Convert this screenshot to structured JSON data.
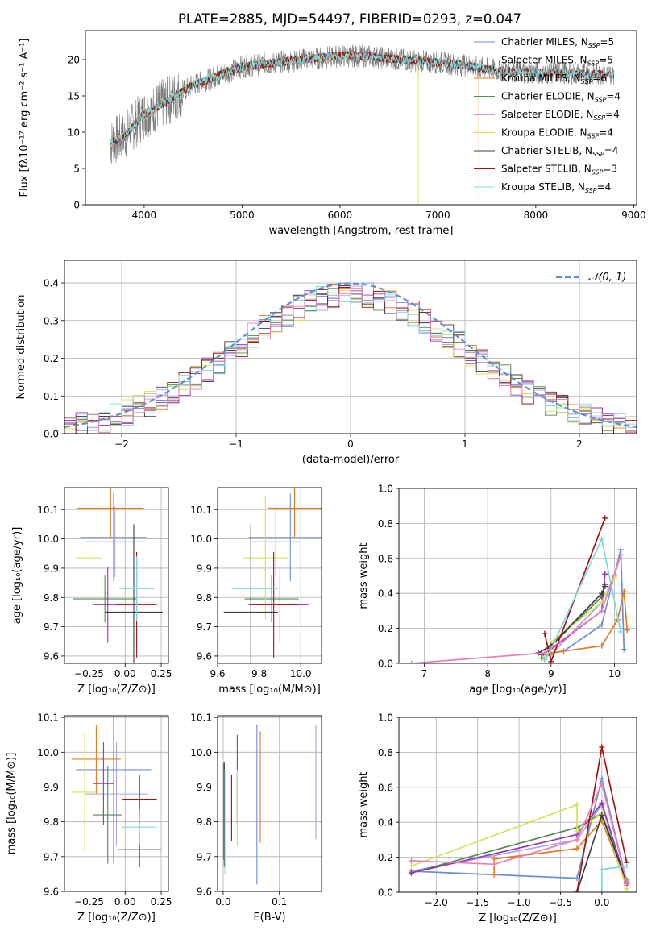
{
  "figure_title": "PLATE=2885, MJD=54497, FIBERID=0293, z=0.047",
  "colors": [
    "#6b8fd6",
    "#a9a4e8",
    "#e07b20",
    "#4f8a4f",
    "#9a32b8",
    "#d8e05a",
    "#3f3f3f",
    "#a01414",
    "#80d8dc"
  ],
  "legend_entries": [
    {
      "text": "Chabrier MILES, N",
      "sub": "SSP",
      "tail": "=5"
    },
    {
      "text": "Salpeter MILES, N",
      "sub": "SSP",
      "tail": "=5"
    },
    {
      "text": "Kroupa MILES, N",
      "sub": "SSP",
      "tail": "=6"
    },
    {
      "text": "Chabrier ELODIE, N",
      "sub": "SSP",
      "tail": "=4"
    },
    {
      "text": "Salpeter ELODIE, N",
      "sub": "SSP",
      "tail": "=4"
    },
    {
      "text": "Kroupa ELODIE, N",
      "sub": "SSP",
      "tail": "=4"
    },
    {
      "text": "Chabrier STELIB, N",
      "sub": "SSP",
      "tail": "=4"
    },
    {
      "text": "Salpeter STELIB, N",
      "sub": "SSP",
      "tail": "=3"
    },
    {
      "text": "Kroupa STELIB, N",
      "sub": "SSP",
      "tail": "=4"
    }
  ],
  "chart_data": [
    {
      "id": "spectrum",
      "type": "line",
      "xlabel": "wavelength [Angstrom, rest frame]",
      "ylabel": "Flux [fλ10⁻¹⁷ erg cm⁻² s⁻¹ A⁻¹]",
      "xlim": [
        3400,
        9030
      ],
      "ylim": [
        0,
        24
      ],
      "xticks": [
        "4000",
        "5000",
        "6000",
        "7000",
        "8000",
        "9000"
      ],
      "yticks": [
        "0",
        "5",
        "10",
        "15",
        "20"
      ],
      "grid": false,
      "legend": "upper right",
      "continuum": {
        "x": [
          3650,
          3800,
          4000,
          4200,
          4500,
          4800,
          5000,
          5300,
          5600,
          6000,
          6300,
          6600,
          7000,
          7300,
          7600,
          8000,
          8500,
          8800
        ],
        "y": [
          8.5,
          9.5,
          12.5,
          14.0,
          16.5,
          18.0,
          19.0,
          19.5,
          20.0,
          20.5,
          20.5,
          20.0,
          19.6,
          19.2,
          18.5,
          18.2,
          18.0,
          18.0
        ]
      },
      "model_ranges": [
        {
          "series": "Chabrier MILES",
          "x": [
            3650,
            7420
          ]
        },
        {
          "series": "Salpeter MILES",
          "x": [
            3650,
            7420
          ]
        },
        {
          "series": "Kroupa MILES",
          "x": [
            3650,
            7420
          ]
        },
        {
          "series": "Chabrier ELODIE",
          "x": [
            3650,
            6800
          ]
        },
        {
          "series": "Salpeter ELODIE",
          "x": [
            3650,
            6800
          ]
        },
        {
          "series": "Kroupa ELODIE",
          "x": [
            3650,
            6800
          ]
        },
        {
          "series": "Chabrier STELIB",
          "x": [
            3650,
            8800
          ]
        },
        {
          "series": "Salpeter STELIB",
          "x": [
            3650,
            8800
          ]
        },
        {
          "series": "Kroupa STELIB",
          "x": [
            3650,
            8800
          ]
        }
      ]
    },
    {
      "id": "residuals",
      "type": "line",
      "xlabel": "(data-model)/error",
      "ylabel": "Normed distribution",
      "xlim": [
        -2.5,
        2.5
      ],
      "ylim": [
        0,
        0.46
      ],
      "xticks": [
        "−2",
        "−1",
        "0",
        "1",
        "2"
      ],
      "yticks": [
        "0.0",
        "0.1",
        "0.2",
        "0.3",
        "0.4"
      ],
      "grid": true,
      "legend": "upper right",
      "gaussian_label": "𝒩(0, 1)",
      "gaussian": {
        "mean": 0,
        "sigma": 1,
        "style": "dashed"
      }
    },
    {
      "id": "age_vs_Z",
      "type": "scatter",
      "xlabel": "Z [log₁₀(Z/Z⊙)]",
      "ylabel": "age  [log₁₀(age/yr)]",
      "xlim": [
        -0.42,
        0.3
      ],
      "ylim": [
        9.575,
        10.175
      ],
      "xticks": [
        "−0.25",
        "0.00",
        "0.25"
      ],
      "yticks": [
        "9.6",
        "9.7",
        "9.8",
        "9.9",
        "10.0",
        "10.1"
      ],
      "grid": true,
      "points": [
        {
          "x": -0.08,
          "xerr": 0.23,
          "y": 10.005,
          "yerr": 0.15
        },
        {
          "x": -0.07,
          "xerr": 0.2,
          "y": 9.99,
          "yerr": 0.12
        },
        {
          "x": -0.1,
          "xerr": 0.23,
          "y": 10.105,
          "yerr": 0.1
        },
        {
          "x": -0.14,
          "xerr": 0.22,
          "y": 9.795,
          "yerr": 0.08
        },
        {
          "x": -0.12,
          "xerr": 0.1,
          "y": 9.775,
          "yerr": 0.13
        },
        {
          "x": -0.25,
          "xerr": 0.09,
          "y": 9.935,
          "yerr": 0.21
        },
        {
          "x": 0.06,
          "xerr": 0.2,
          "y": 9.75,
          "yerr": 0.3
        },
        {
          "x": 0.08,
          "xerr": 0.14,
          "y": 9.775,
          "yerr": 0.18
        },
        {
          "x": 0.08,
          "xerr": 0.12,
          "y": 9.83,
          "yerr": 0.11
        }
      ]
    },
    {
      "id": "age_vs_mass",
      "type": "scatter",
      "xlabel": "mass [log₁₀(M/M⊙)]",
      "ylabel": "",
      "xlim": [
        9.6,
        10.1
      ],
      "ylim": [
        9.575,
        10.175
      ],
      "xticks": [
        "9.6",
        "9.8",
        "10.0"
      ],
      "yticks": [
        "9.6",
        "9.7",
        "9.8",
        "9.9",
        "10.0",
        "10.1"
      ],
      "grid": true,
      "points": [
        {
          "x": 9.95,
          "xerr": 0.2,
          "y": 10.005,
          "yerr": 0.15
        },
        {
          "x": 9.88,
          "xerr": 0.12,
          "y": 9.99,
          "yerr": 0.12
        },
        {
          "x": 9.97,
          "xerr": 0.13,
          "y": 10.105,
          "yerr": 0.1
        },
        {
          "x": 9.86,
          "xerr": 0.13,
          "y": 9.795,
          "yerr": 0.08
        },
        {
          "x": 9.9,
          "xerr": 0.14,
          "y": 9.775,
          "yerr": 0.13
        },
        {
          "x": 9.83,
          "xerr": 0.11,
          "y": 9.935,
          "yerr": 0.21
        },
        {
          "x": 9.76,
          "xerr": 0.13,
          "y": 9.75,
          "yerr": 0.3
        },
        {
          "x": 9.87,
          "xerr": 0.12,
          "y": 9.775,
          "yerr": 0.18
        },
        {
          "x": 9.78,
          "xerr": 0.11,
          "y": 9.83,
          "yerr": 0.11
        }
      ]
    },
    {
      "id": "weight_vs_age",
      "type": "line",
      "xlabel": "age  [log₁₀(age/yr)]",
      "ylabel": "mass weight",
      "xlim": [
        6.6,
        10.35
      ],
      "ylim": [
        0,
        1.0
      ],
      "xticks": [
        "7",
        "8",
        "9",
        "10"
      ],
      "yticks": [
        "0.0",
        "0.2",
        "0.4",
        "0.6",
        "0.8",
        "1.0"
      ],
      "grid": true,
      "series": [
        {
          "name": "Chabrier MILES",
          "x": [
            8.9,
            9.2,
            9.8,
            10.1,
            10.15
          ],
          "y": [
            0.05,
            0.07,
            0.22,
            0.65,
            0.08
          ]
        },
        {
          "name": "Salpeter MILES",
          "x": [
            8.9,
            9.0,
            9.8,
            10.0,
            10.1
          ],
          "y": [
            0.04,
            0.05,
            0.35,
            0.5,
            0.62
          ]
        },
        {
          "name": "Kroupa MILES",
          "x": [
            8.9,
            9.0,
            9.8,
            10.05,
            10.15,
            10.2
          ],
          "y": [
            0.03,
            0.06,
            0.1,
            0.25,
            0.41,
            0.19
          ]
        },
        {
          "name": "Chabrier ELODIE",
          "x": [
            8.85,
            9.0,
            9.8,
            9.85
          ],
          "y": [
            0.03,
            0.1,
            0.38,
            0.45
          ]
        },
        {
          "name": "Salpeter ELODIE",
          "x": [
            8.85,
            9.0,
            9.8,
            9.85
          ],
          "y": [
            0.05,
            0.08,
            0.3,
            0.51
          ]
        },
        {
          "name": "Kroupa ELODIE",
          "x": [
            8.9,
            9.0,
            9.8,
            10.0
          ],
          "y": [
            0.04,
            0.12,
            0.35,
            0.49
          ]
        },
        {
          "name": "Chabrier STELIB",
          "x": [
            8.8,
            9.0,
            9.8,
            9.85
          ],
          "y": [
            0.06,
            0.1,
            0.4,
            0.44
          ]
        },
        {
          "name": "Salpeter STELIB",
          "x": [
            8.9,
            9.0,
            9.85
          ],
          "y": [
            0.17,
            0.01,
            0.83
          ]
        },
        {
          "name": "Kroupa STELIB",
          "x": [
            8.9,
            9.0,
            9.8,
            10.1
          ],
          "y": [
            0.02,
            0.08,
            0.71,
            0.18
          ]
        },
        {
          "name": "",
          "x": [
            6.8,
            8.9,
            9.8,
            10.1
          ],
          "y": [
            0.0,
            0.06,
            0.3,
            0.62
          ]
        }
      ]
    },
    {
      "id": "mass_vs_Z",
      "type": "scatter",
      "xlabel": "Z [log₁₀(Z/Z⊙)]",
      "ylabel": "mass [log₁₀(M/M⊙)]",
      "xlim": [
        -0.42,
        0.3
      ],
      "ylim": [
        9.6,
        10.105
      ],
      "xticks": [
        "−0.25",
        "0.00",
        "0.25"
      ],
      "yticks": [
        "9.6",
        "9.7",
        "9.8",
        "9.9",
        "10.0",
        "10.1"
      ],
      "grid": true,
      "points": [
        {
          "x": -0.08,
          "xerr": 0.26,
          "y": 9.95,
          "yerr": 0.27
        },
        {
          "x": -0.06,
          "xerr": 0.22,
          "y": 9.88,
          "yerr": 0.15
        },
        {
          "x": -0.2,
          "xerr": 0.17,
          "y": 9.98,
          "yerr": 0.1
        },
        {
          "x": -0.12,
          "xerr": 0.1,
          "y": 9.82,
          "yerr": 0.14
        },
        {
          "x": -0.15,
          "xerr": 0.07,
          "y": 9.91,
          "yerr": 0.12
        },
        {
          "x": -0.28,
          "xerr": 0.09,
          "y": 9.885,
          "yerr": 0.17
        },
        {
          "x": 0.1,
          "xerr": 0.15,
          "y": 9.72,
          "yerr": 0.05
        },
        {
          "x": 0.1,
          "xerr": 0.12,
          "y": 9.865,
          "yerr": 0.07
        },
        {
          "x": 0.1,
          "xerr": 0.12,
          "y": 9.785,
          "yerr": 0.05
        }
      ]
    },
    {
      "id": "mass_vs_ebv",
      "type": "scatter",
      "xlabel": "E(B-V)",
      "ylabel": "",
      "xlim": [
        -0.01,
        0.175
      ],
      "ylim": [
        9.6,
        10.105
      ],
      "xticks": [
        "0.0",
        "0.1"
      ],
      "yticks": [
        "9.6",
        "9.7",
        "9.8",
        "9.9",
        "10.0",
        "10.1"
      ],
      "grid": true,
      "points": [
        {
          "x": 0.06,
          "y": 9.85,
          "yerr": 0.23
        },
        {
          "x": 0.165,
          "y": 9.915,
          "yerr": 0.165
        },
        {
          "x": 0.066,
          "y": 9.9,
          "yerr": 0.16
        },
        {
          "x": 0.001,
          "y": 9.83,
          "yerr": 0.14
        },
        {
          "x": 0.025,
          "y": 9.92,
          "yerr": 0.13
        },
        {
          "x": 0.025,
          "y": 9.84,
          "yerr": 0.11
        },
        {
          "x": 0.002,
          "y": 9.82,
          "yerr": 0.15
        },
        {
          "x": 0.015,
          "y": 9.84,
          "yerr": 0.095
        },
        {
          "x": 0.003,
          "y": 9.8,
          "yerr": 0.15
        }
      ]
    },
    {
      "id": "weight_vs_Z",
      "type": "line",
      "xlabel": "Z [log₁₀(Z/Z⊙)]",
      "ylabel": "mass weight",
      "xlim": [
        -2.45,
        0.42
      ],
      "ylim": [
        0,
        1.0
      ],
      "xticks": [
        "−2.0",
        "−1.5",
        "−1.0",
        "−0.5",
        "0.0"
      ],
      "yticks": [
        "0.0",
        "0.2",
        "0.4",
        "0.6",
        "0.8",
        "1.0"
      ],
      "grid": true,
      "series": [
        {
          "name": "Chabrier MILES",
          "x": [
            -2.3,
            -0.3,
            0.0,
            0.3
          ],
          "y": [
            0.12,
            0.08,
            0.65,
            0.06
          ]
        },
        {
          "name": "Salpeter MILES",
          "x": [
            -2.3,
            -0.3,
            0.0,
            0.3
          ],
          "y": [
            0.12,
            0.3,
            0.5,
            0.05
          ]
        },
        {
          "name": "Kroupa MILES",
          "x": [
            -1.3,
            -1.3,
            -0.3,
            0.0,
            0.3
          ],
          "y": [
            0.1,
            0.19,
            0.25,
            0.41,
            0.04
          ]
        },
        {
          "name": "Chabrier ELODIE",
          "x": [
            -2.3,
            -0.3,
            0.0,
            0.3
          ],
          "y": [
            0.11,
            0.37,
            0.45,
            0.07
          ]
        },
        {
          "name": "Salpeter ELODIE",
          "x": [
            -2.3,
            -0.3,
            0.0,
            0.3
          ],
          "y": [
            0.11,
            0.33,
            0.51,
            0.05
          ]
        },
        {
          "name": "Kroupa ELODIE",
          "x": [
            -2.3,
            -0.3,
            -0.3,
            0.0,
            0.3
          ],
          "y": [
            0.15,
            0.5,
            0.35,
            0.45,
            0.02
          ]
        },
        {
          "name": "Chabrier STELIB",
          "x": [
            -0.3,
            0.0,
            0.3
          ],
          "y": [
            0.0,
            0.44,
            0.06
          ]
        },
        {
          "name": "Salpeter STELIB",
          "x": [
            -0.3,
            0.0,
            0.3
          ],
          "y": [
            0.0,
            0.83,
            0.17
          ]
        },
        {
          "name": "Kroupa STELIB",
          "x": [
            0.0,
            0.0,
            0.3
          ],
          "y": [
            0.0,
            0.13,
            0.15
          ]
        },
        {
          "name": "",
          "x": [
            -2.3,
            -1.3,
            -0.3,
            0.0,
            0.3
          ],
          "y": [
            0.18,
            0.16,
            0.3,
            0.62,
            0.06
          ]
        }
      ]
    }
  ]
}
